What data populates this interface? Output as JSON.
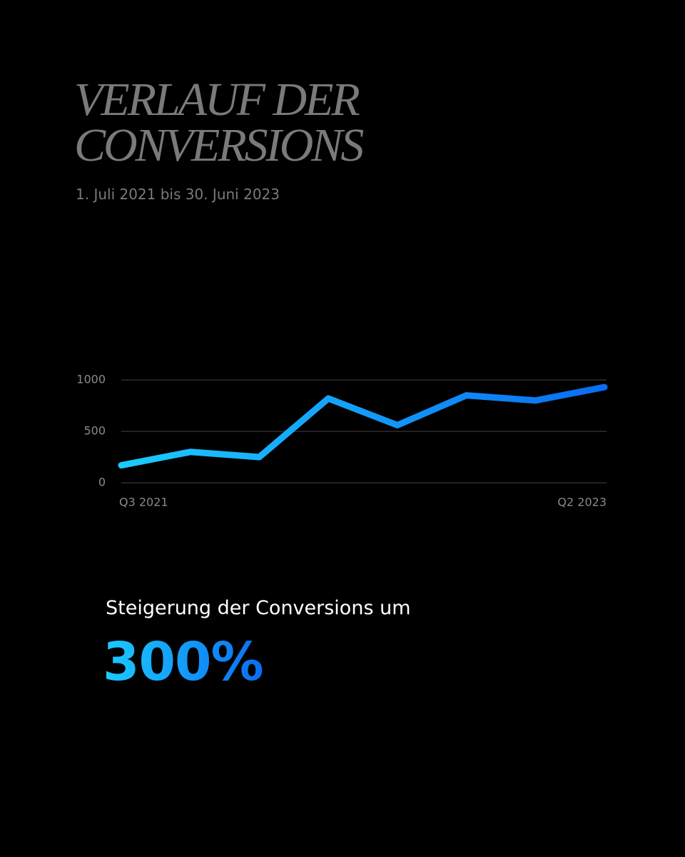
{
  "chart_data": {
    "type": "line",
    "title": "VERLAUF DER CONVERSIONS",
    "subtitle": "1. Juli 2021 bis 30. Juni 2023",
    "categories": [
      "Q3 2021",
      null,
      null,
      null,
      null,
      null,
      null,
      "Q2 2023"
    ],
    "series": [
      {
        "values": [
          170,
          300,
          250,
          820,
          560,
          850,
          800,
          930
        ],
        "colors": [
          "#1ccbff",
          "#0a6df2"
        ]
      }
    ],
    "ylim": [
      0,
      1000
    ],
    "yticks": [
      0,
      500,
      1000
    ],
    "grid": true,
    "annotation": {
      "text": "Steigerung der Conversions um",
      "highlight": "300%"
    }
  }
}
